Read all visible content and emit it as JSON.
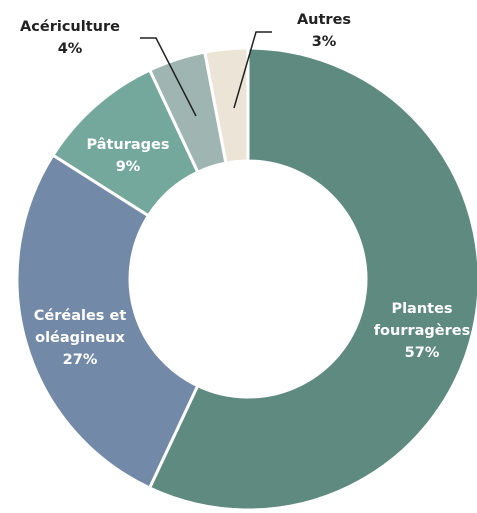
{
  "chart_data": {
    "type": "pie",
    "categories": [
      "Plantes fourragères",
      "Céréales et oléagineux",
      "Pâturages",
      "Acériculture",
      "Autres"
    ],
    "values": [
      57,
      27,
      9,
      4,
      3
    ],
    "value_labels": [
      "57%",
      "27%",
      "9%",
      "4%",
      "3%"
    ],
    "colors": [
      "#5e8a80",
      "#7289a8",
      "#74a89d",
      "#9fb5b2",
      "#ede4d8"
    ],
    "donut": true
  }
}
